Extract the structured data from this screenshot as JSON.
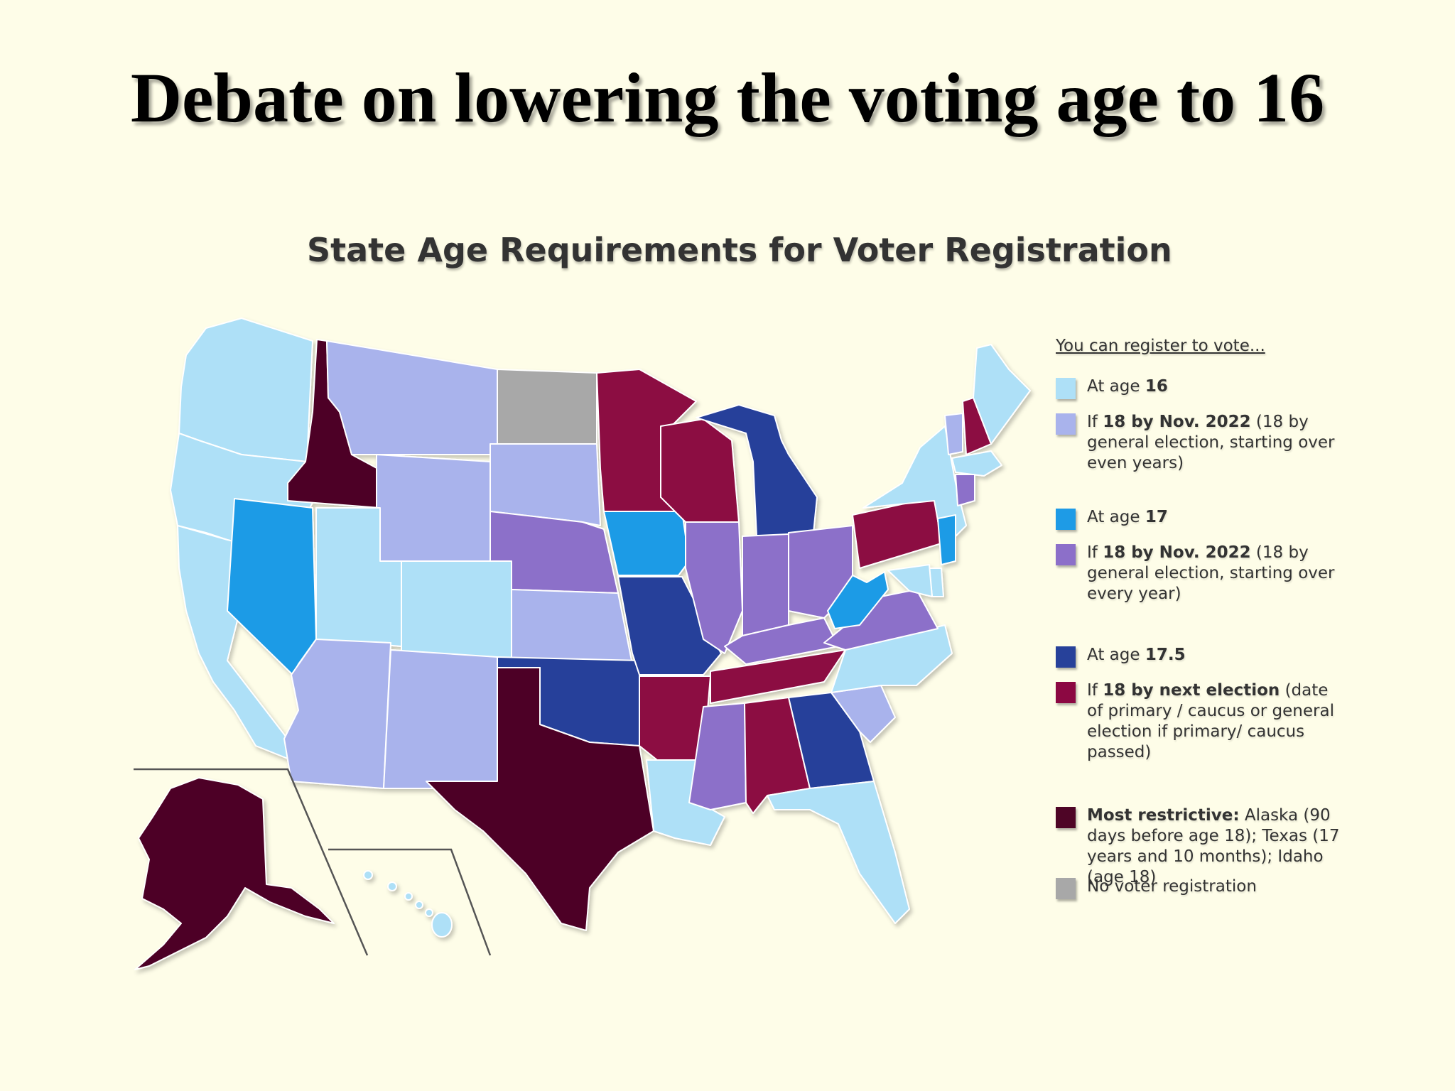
{
  "slide": {
    "title": "Debate on lowering the voting age to 16"
  },
  "map": {
    "title": "State Age Requirements for Voter Registration",
    "legend": {
      "heading": "You can register to vote...",
      "items": [
        {
          "key": "age16",
          "prefix": "At age ",
          "bold": "16",
          "rest": "",
          "color": "#aee0f7"
        },
        {
          "key": "nov2022_even",
          "prefix": "If ",
          "bold": "18 by Nov. 2022",
          "rest": " (18 by general election, starting over even years)",
          "color": "#a9b3ec"
        },
        {
          "key": "age17",
          "prefix": "At age ",
          "bold": "17",
          "rest": "",
          "color": "#1e9be6"
        },
        {
          "key": "nov2022_every",
          "prefix": "If ",
          "bold": "18 by Nov. 2022",
          "rest": " (18 by general election, starting over every year)",
          "color": "#8c6fc9"
        },
        {
          "key": "age17_5",
          "prefix": "At age ",
          "bold": "17.5",
          "rest": "",
          "color": "#27419a"
        },
        {
          "key": "next_election",
          "prefix": "If ",
          "bold": "18 by next election",
          "rest": " (date of primary / caucus or general election if primary/ caucus passed)",
          "color": "#8c0842"
        },
        {
          "key": "most_restrictive",
          "prefix": "",
          "bold": "Most restrictive:",
          "rest": " Alaska (90 days before age 18); Texas (17 years and 10 months); Idaho (age 18)",
          "color": "#4e0526"
        },
        {
          "key": "no_registration",
          "prefix": "",
          "bold": "",
          "rest": "No voter registration",
          "color": "#a8a8a8"
        }
      ]
    },
    "states": {
      "WA": "age16",
      "OR": "age16",
      "CA": "age16",
      "UT": "age16",
      "CO": "age16",
      "NC": "age16",
      "LA": "age16",
      "FL": "age16",
      "NY": "age16",
      "ME": "age16",
      "MA": "age16",
      "HI": "age16",
      "MD": "age16",
      "DE": "age16",
      "NJ": "age17",
      "MT": "nov2022_even",
      "WY": "nov2022_even",
      "SD": "nov2022_even",
      "KS": "nov2022_even",
      "AZ": "nov2022_even",
      "NM": "nov2022_even",
      "SC": "nov2022_even",
      "VT": "nov2022_even",
      "NV": "age17",
      "IA": "age17",
      "WV": "age17",
      "NE": "nov2022_every",
      "IL": "nov2022_every",
      "IN": "nov2022_every",
      "OH": "nov2022_every",
      "KY": "nov2022_every",
      "VA": "nov2022_every",
      "MS": "nov2022_every",
      "CT": "nov2022_every",
      "MI": "age17_5",
      "MO": "age17_5",
      "OK": "age17_5",
      "GA": "age17_5",
      "MN": "next_election",
      "WI": "next_election",
      "PA": "next_election",
      "TN": "next_election",
      "AR": "next_election",
      "AL": "next_election",
      "NH": "next_election",
      "ID": "most_restrictive",
      "TX": "most_restrictive",
      "AK": "most_restrictive",
      "ND": "no_registration"
    }
  }
}
